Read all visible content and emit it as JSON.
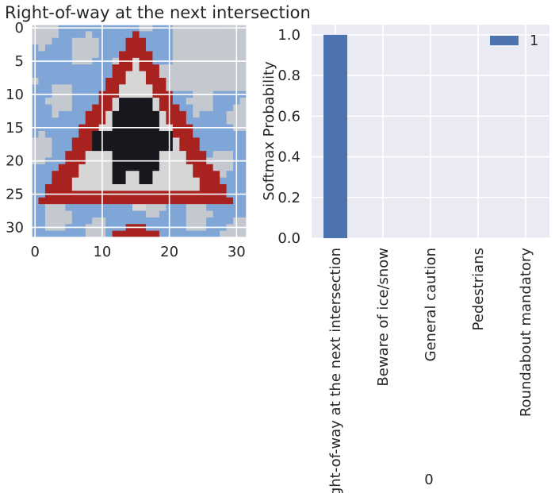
{
  "chart_data": [
    {
      "type": "image",
      "title": "Right-of-way at the next intersection",
      "xticks": [
        0,
        10,
        20,
        30
      ],
      "yticks": [
        0,
        5,
        10,
        15,
        20,
        25,
        30
      ],
      "xlim": [
        -0.5,
        31.5
      ],
      "ylim": [
        31.5,
        -0.5
      ],
      "grid": true,
      "image_description_colors": {
        "sky": "#7fa6d6",
        "cloud": "#c4c8cf",
        "border_red": "#a8221f",
        "sign_white": "#d6d6d6",
        "symbol_black": "#16181d"
      }
    },
    {
      "type": "bar",
      "xlabel": "0",
      "ylabel": "Softmax Probability",
      "categories": [
        "Right-of-way at the next intersection",
        "Beware of ice/snow",
        "General caution",
        "Pedestrians",
        "Roundabout mandatory"
      ],
      "series": [
        {
          "name": "1",
          "values": [
            1.0,
            0.0,
            0.0,
            0.0,
            0.0
          ]
        }
      ],
      "ylim": [
        0,
        1.05
      ],
      "yticks": [
        "0.0",
        "0.2",
        "0.4",
        "0.6",
        "0.8",
        "1.0"
      ],
      "grid": true,
      "legend": "top-right",
      "colors": {
        "bar": "#4c72b0",
        "background": "#eaeaf2",
        "grid": "#ffffff"
      }
    }
  ]
}
